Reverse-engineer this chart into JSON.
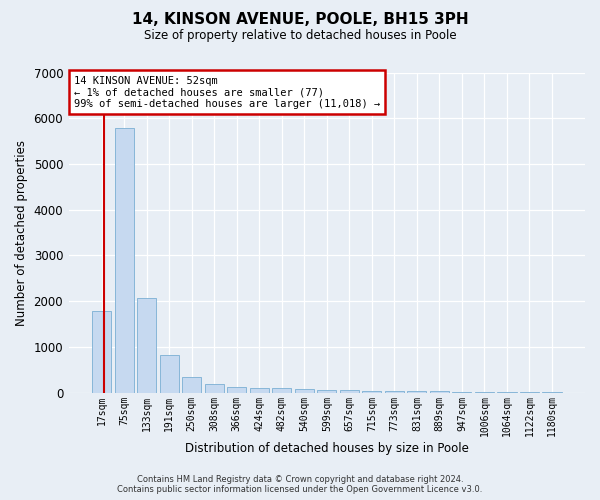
{
  "title": "14, KINSON AVENUE, POOLE, BH15 3PH",
  "subtitle": "Size of property relative to detached houses in Poole",
  "xlabel": "Distribution of detached houses by size in Poole",
  "ylabel": "Number of detached properties",
  "bar_labels": [
    "17sqm",
    "75sqm",
    "133sqm",
    "191sqm",
    "250sqm",
    "308sqm",
    "366sqm",
    "424sqm",
    "482sqm",
    "540sqm",
    "599sqm",
    "657sqm",
    "715sqm",
    "773sqm",
    "831sqm",
    "889sqm",
    "947sqm",
    "1006sqm",
    "1064sqm",
    "1122sqm",
    "1180sqm"
  ],
  "bar_values": [
    1780,
    5780,
    2060,
    820,
    340,
    190,
    120,
    100,
    90,
    70,
    60,
    50,
    40,
    35,
    30,
    25,
    20,
    15,
    10,
    5,
    3
  ],
  "bar_color": "#c6d9f0",
  "bar_edgecolor": "#7bafd4",
  "vline_color": "#cc0000",
  "annotation_text": "14 KINSON AVENUE: 52sqm\n← 1% of detached houses are smaller (77)\n99% of semi-detached houses are larger (11,018) →",
  "annotation_box_facecolor": "#ffffff",
  "annotation_box_edgecolor": "#cc0000",
  "footer": "Contains HM Land Registry data © Crown copyright and database right 2024.\nContains public sector information licensed under the Open Government Licence v3.0.",
  "bg_color": "#e8eef5",
  "ylim": [
    0,
    7000
  ],
  "yticks": [
    0,
    1000,
    2000,
    3000,
    4000,
    5000,
    6000,
    7000
  ]
}
